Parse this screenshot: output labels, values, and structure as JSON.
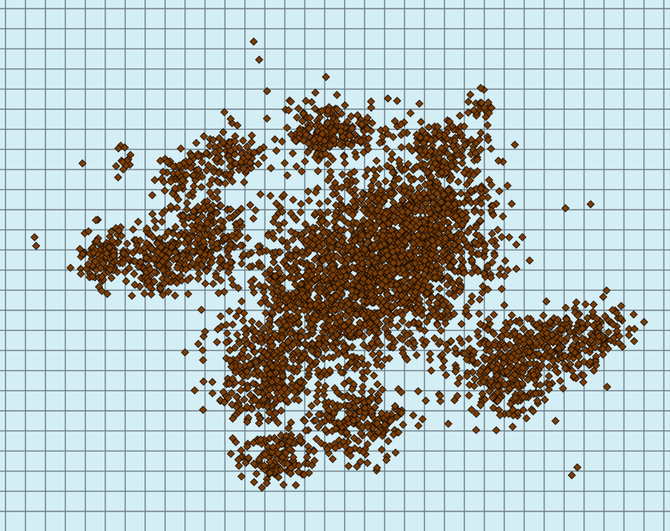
{
  "map": {
    "background_color": "#d4eef5",
    "grid_color": "#6f7f88",
    "marker_fill": "#7a3e08",
    "marker_stroke": "#1a0d02",
    "marker_shape": "diamond",
    "grid": {
      "columns": 34,
      "rows": 23
    }
  }
}
